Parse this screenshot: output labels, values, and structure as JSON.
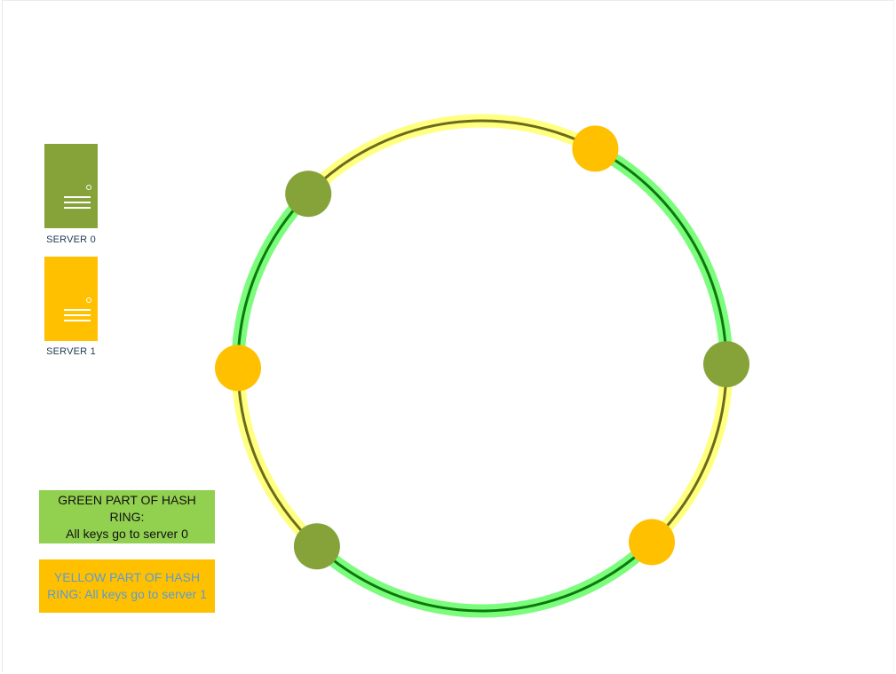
{
  "servers": [
    {
      "caption": "SERVER 0",
      "color": "#86a33a"
    },
    {
      "caption": "SERVER 1",
      "color": "#ffc000"
    }
  ],
  "legend": {
    "green": {
      "line1": "GREEN PART OF HASH RING:",
      "line2": "All keys go to server 0",
      "background": "#92d050",
      "text_color": "#111111"
    },
    "yellow": {
      "line1": "YELLOW PART OF HASH",
      "line2": "RING: All keys go to server 1",
      "background": "#ffc000",
      "text_color": "#5b9bd5"
    }
  },
  "ring": {
    "nodes": [
      {
        "server": 0,
        "color": "#86a33a"
      },
      {
        "server": 1,
        "color": "#ffc000"
      },
      {
        "server": 0,
        "color": "#86a33a"
      },
      {
        "server": 1,
        "color": "#ffc000"
      },
      {
        "server": 0,
        "color": "#86a33a"
      },
      {
        "server": 1,
        "color": "#ffc000"
      }
    ],
    "highlight_colors": {
      "green": "#7cfc7c",
      "yellow": "#ffff80"
    },
    "line_colors": {
      "green": "#0a7a0a",
      "yellow": "#6b6b1a"
    }
  }
}
